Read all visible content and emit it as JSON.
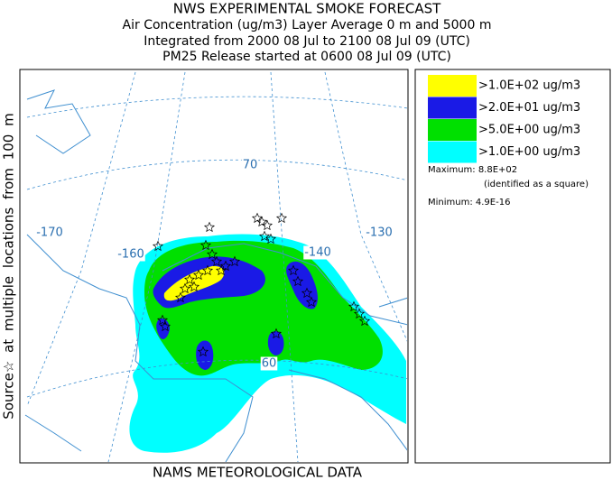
{
  "header": {
    "lines": [
      "NWS EXPERIMENTAL SMOKE FORECAST",
      "Air Concentration (ug/m3) Layer Average    0 m and  5000 m",
      "Integrated from 2000 08 Jul to 2100 08 Jul 09 (UTC)",
      "PM25 Release started at 0600 08 Jul 09 (UTC)"
    ]
  },
  "side_label": "Source☆   at multiple locations   from   100 m",
  "map_labels": [
    "-170",
    "-160",
    "-140",
    "-130",
    "70",
    "60"
  ],
  "legend": {
    "items": [
      {
        "label": ">1.0E+02 ug/m3",
        "color": "#ffff00"
      },
      {
        "label": ">2.0E+01 ug/m3",
        "color": "#1a1ae6"
      },
      {
        "label": ">5.0E+00 ug/m3",
        "color": "#00e000"
      },
      {
        "label": ">1.0E+00 ug/m3",
        "color": "#00ffff"
      }
    ],
    "maximum": "Maximum: 8.8E+02",
    "maximum_note": "(identified as a square)",
    "minimum": "Minimum: 4.9E-16"
  },
  "footer": "NAMS METEOROLOGICAL DATA"
}
